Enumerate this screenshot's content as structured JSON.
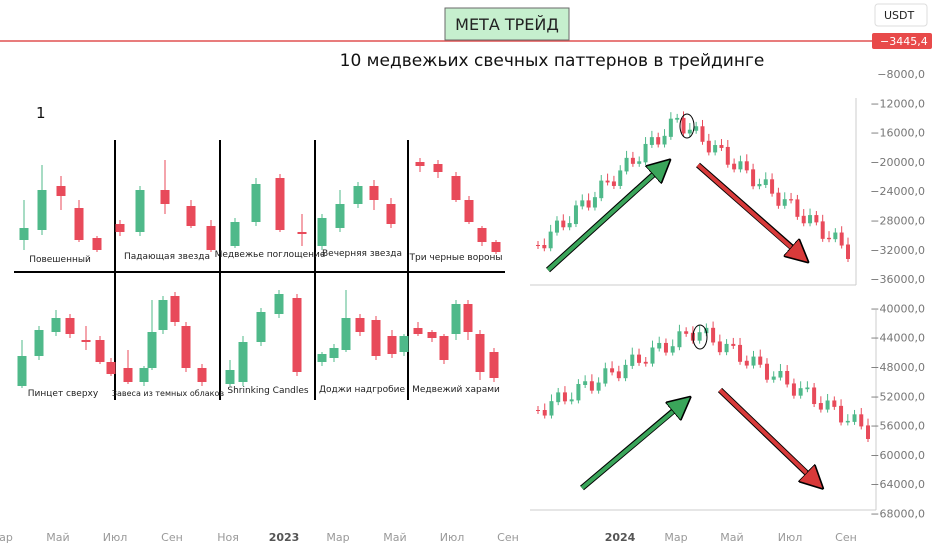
{
  "header": {
    "badge": "МЕТА ТРЕЙД",
    "currency": "USDT",
    "price_tag": "−3445,4"
  },
  "price_axis": [
    "−8000,0",
    "−12000,0",
    "−16000,0",
    "−20000,0",
    "−24000,0",
    "−28000,0",
    "−32000,0",
    "−36000,0",
    "−40000,0",
    "−44000,0",
    "−48000,0",
    "−52000,0",
    "−56000,0",
    "−60000,0",
    "−64000,0",
    "−68000,0"
  ],
  "time_axis": [
    "ар",
    "Май",
    "Июл",
    "Сен",
    "Ноя",
    "2023",
    "Мар",
    "Май",
    "Июл",
    "Сен",
    "2024",
    "Мар",
    "Май",
    "Июл",
    "Сен"
  ],
  "image": {
    "title": "10 медвежьих свечных паттернов в трейдинге",
    "number": "1",
    "patterns": [
      "Повешенный",
      "Падающая звезда",
      "Медвежье поглощение",
      "Вечерняя звезда",
      "Три черные вороны",
      "Пинцет сверху",
      "Завеса из темных облаков",
      "Shrinking Candles",
      "Доджи надгробие",
      "Медвежий харами"
    ]
  }
}
